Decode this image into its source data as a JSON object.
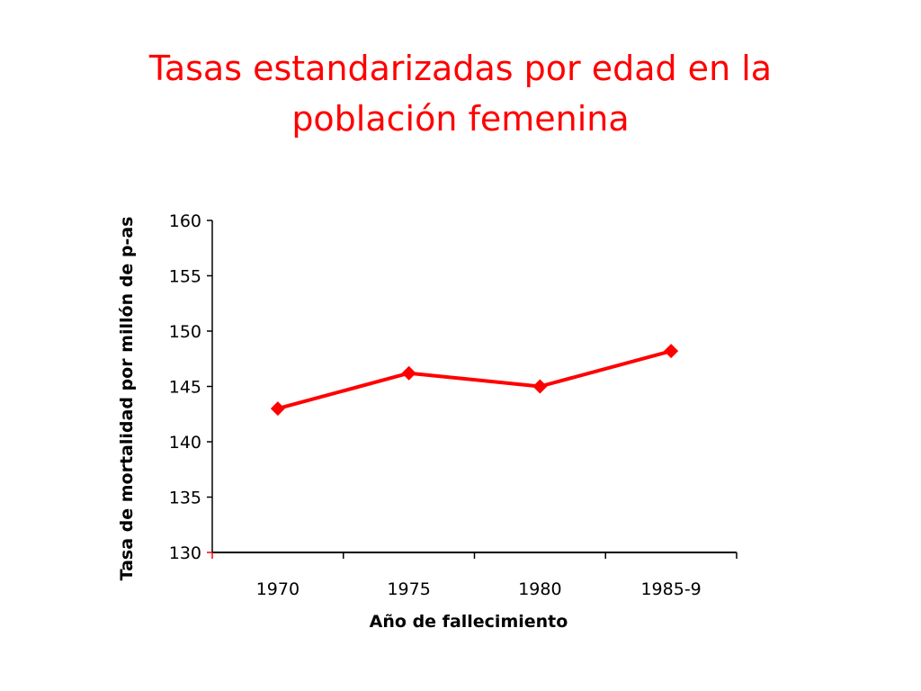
{
  "slide": {
    "title_line1": "Tasas estandarizadas por edad en la",
    "title_line2": "población femenina"
  },
  "chart_data": {
    "type": "line",
    "title": "Tasas estandarizadas por edad en la población femenina",
    "categories": [
      "1970",
      "1975",
      "1980",
      "1985-9"
    ],
    "series": [
      {
        "values": [
          143.0,
          146.2,
          145.0,
          148.2
        ],
        "color": "#ff0000",
        "marker": "diamond"
      }
    ],
    "xlabel": "Año de fallecimiento",
    "ylabel": "Tasa de mortalidad por millón de p-as",
    "ylim": [
      130,
      160
    ],
    "yticks": [
      130,
      135,
      140,
      145,
      150,
      155,
      160
    ],
    "grid": false,
    "legend": "none"
  }
}
